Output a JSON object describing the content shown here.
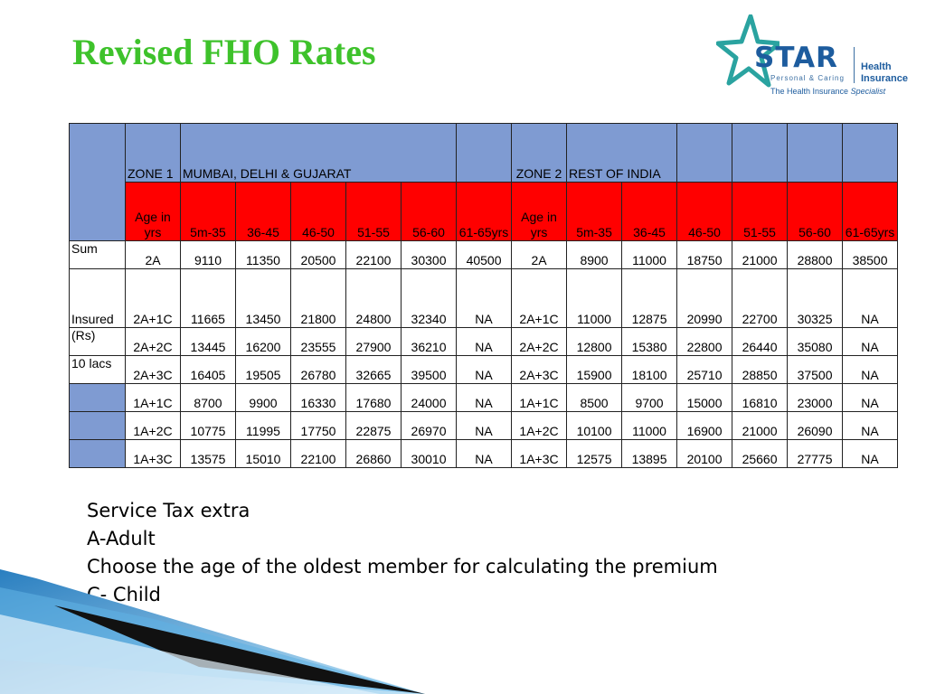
{
  "slide": {
    "title": "Revised FHO Rates",
    "title_color": "#3ec22b"
  },
  "logo": {
    "brand": "STAR",
    "tagline": "Personal & Caring",
    "product_line1": "Health",
    "product_line2": "Insurance",
    "specialist_prefix": "The Health Insurance",
    "specialist_word": "Specialist",
    "color": "#1d5c9e"
  },
  "table": {
    "zone1_label": "ZONE 1",
    "zone1_name": "MUMBAI, DELHI  & GUJARAT",
    "zone2_label": "ZONE 2",
    "zone2_name": "REST OF INDIA",
    "age_headers": [
      "Age in yrs",
      "5m-35",
      "36-45",
      "46-50",
      "51-55",
      "56-60",
      "61-65yrs",
      "Age in yrs",
      "5m-35",
      "36-45",
      "46-50",
      "51-55",
      "56-60",
      "61-65yrs"
    ],
    "row_labels": [
      "Sum",
      "Insured",
      "(Rs)",
      "10 lacs",
      "",
      "",
      ""
    ],
    "rows": [
      [
        "2A",
        "9110",
        "11350",
        "20500",
        "22100",
        "30300",
        "40500",
        "2A",
        "8900",
        "11000",
        "18750",
        "21000",
        "28800",
        "38500"
      ],
      [
        "2A+1C",
        "11665",
        "13450",
        "21800",
        "24800",
        "32340",
        "NA",
        "2A+1C",
        "11000",
        "12875",
        "20990",
        "22700",
        "30325",
        "NA"
      ],
      [
        "2A+2C",
        "13445",
        "16200",
        "23555",
        "27900",
        "36210",
        "NA",
        "2A+2C",
        "12800",
        "15380",
        "22800",
        "26440",
        "35080",
        "NA"
      ],
      [
        "2A+3C",
        "16405",
        "19505",
        "26780",
        "32665",
        "39500",
        "NA",
        "2A+3C",
        "15900",
        "18100",
        "25710",
        "28850",
        "37500",
        "NA"
      ],
      [
        "1A+1C",
        "8700",
        "9900",
        "16330",
        "17680",
        "24000",
        "NA",
        "1A+1C",
        "8500",
        "9700",
        "15000",
        "16810",
        "23000",
        "NA"
      ],
      [
        "1A+2C",
        "10775",
        "11995",
        "17750",
        "22875",
        "26970",
        "NA",
        "1A+2C",
        "10100",
        "11000",
        "16900",
        "21000",
        "26090",
        "NA"
      ],
      [
        "1A+3C",
        "13575",
        "15010",
        "22100",
        "26860",
        "30010",
        "NA",
        "1A+3C",
        "12575",
        "13895",
        "20100",
        "25660",
        "27775",
        "NA"
      ]
    ],
    "header_blue": "#7f9bd2",
    "header_red": "#ff0000"
  },
  "notes": [
    "Service Tax extra",
    "A-Adult",
    "Choose the age  of the oldest member for calculating the premium",
    "C- Child"
  ]
}
